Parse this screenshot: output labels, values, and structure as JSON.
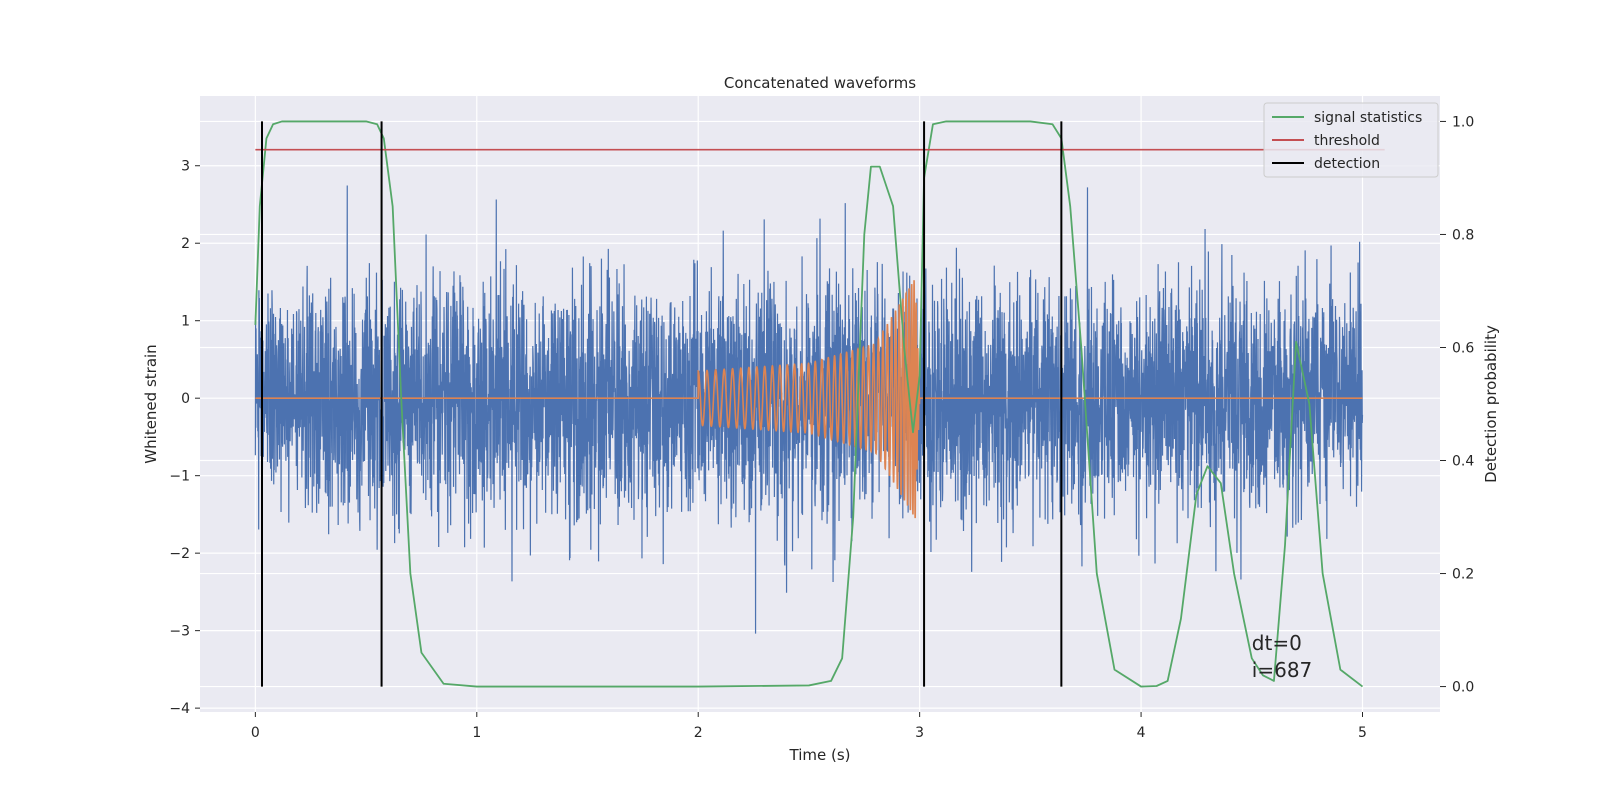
{
  "chart_data": {
    "type": "line",
    "title": "Concatenated waveforms",
    "xlabel": "Time (s)",
    "ylabel": "Whitened strain",
    "y2label": "Detection probability",
    "xlim": [
      -0.25,
      5.35
    ],
    "ylim": [
      -4.05,
      3.9
    ],
    "y2lim": [
      -0.045,
      1.045
    ],
    "xticks": [
      0,
      1,
      2,
      3,
      4,
      5
    ],
    "yticks": [
      -4,
      -3,
      -2,
      -1,
      0,
      1,
      2,
      3
    ],
    "y2ticks": [
      0.0,
      0.2,
      0.4,
      0.6,
      0.8,
      1.0
    ],
    "xtick_labels": [
      "0",
      "1",
      "2",
      "3",
      "4",
      "5"
    ],
    "ytick_labels": [
      "−4",
      "−3",
      "−2",
      "−1",
      "0",
      "1",
      "2",
      "3"
    ],
    "y2tick_labels": [
      "0.0",
      "0.2",
      "0.4",
      "0.6",
      "0.8",
      "1.0"
    ],
    "grid": true,
    "legend_position": "top-right",
    "legend": [
      {
        "label": "signal statistics",
        "color": "#55a868"
      },
      {
        "label": "threshold",
        "color": "#c44e52"
      },
      {
        "label": "detection",
        "color": "#000000"
      }
    ],
    "series": [
      {
        "key": "strain",
        "axis": "left",
        "color": "#4c72b0",
        "x_range": [
          0,
          5
        ],
        "noise_sigma": 0.75
      },
      {
        "key": "waveform",
        "axis": "left",
        "color": "#dd8452",
        "x": [
          2.0,
          2.5,
          2.8,
          2.98,
          3.0
        ],
        "envelope": [
          0.35,
          0.45,
          0.7,
          1.55,
          0.0
        ]
      },
      {
        "key": "signal_statistics",
        "axis": "right",
        "color": "#55a868",
        "x": [
          0.0,
          0.02,
          0.05,
          0.08,
          0.12,
          0.5,
          0.55,
          0.58,
          0.62,
          0.66,
          0.7,
          0.75,
          0.85,
          1.0,
          2.0,
          2.5,
          2.6,
          2.65,
          2.7,
          2.75,
          2.78,
          2.82,
          2.88,
          2.93,
          2.97,
          3.0,
          3.02,
          3.06,
          3.12,
          3.5,
          3.6,
          3.64,
          3.68,
          3.73,
          3.8,
          3.88,
          4.0,
          4.07,
          4.12,
          4.18,
          4.25,
          4.3,
          4.36,
          4.42,
          4.5,
          4.55,
          4.6,
          4.65,
          4.7,
          4.76,
          4.82,
          4.9,
          5.0
        ],
        "values": [
          0.64,
          0.85,
          0.97,
          0.995,
          1.0,
          1.0,
          0.995,
          0.97,
          0.85,
          0.5,
          0.2,
          0.06,
          0.005,
          0.0,
          0.0,
          0.002,
          0.01,
          0.05,
          0.3,
          0.8,
          0.92,
          0.92,
          0.85,
          0.6,
          0.45,
          0.55,
          0.9,
          0.995,
          1.0,
          1.0,
          0.995,
          0.97,
          0.85,
          0.6,
          0.2,
          0.03,
          0.0,
          0.001,
          0.01,
          0.12,
          0.34,
          0.39,
          0.36,
          0.2,
          0.05,
          0.02,
          0.01,
          0.25,
          0.61,
          0.5,
          0.2,
          0.03,
          0.0
        ]
      },
      {
        "key": "threshold",
        "axis": "right",
        "color": "#c44e52",
        "x": [
          0.0,
          5.1
        ],
        "values": [
          0.95,
          0.95
        ]
      },
      {
        "key": "detection",
        "axis": "right",
        "color": "#000000",
        "x_positions": [
          0.03,
          0.57,
          3.02,
          3.64
        ],
        "range": [
          0.0,
          1.0
        ]
      }
    ],
    "annotations": [
      {
        "text": "dt=0",
        "x": 4.5,
        "y": -3.25
      },
      {
        "text": "i=687",
        "x": 4.5,
        "y": -3.6
      }
    ]
  }
}
